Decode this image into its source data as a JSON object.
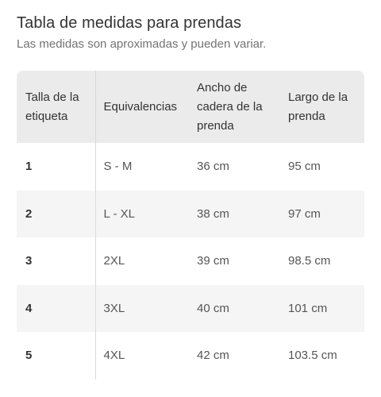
{
  "header": {
    "title": "Tabla de medidas para prendas",
    "subtitle": "Las medidas son aproximadas y pueden variar."
  },
  "table": {
    "columns": [
      "Talla de la etiqueta",
      "Equivalencias",
      "Ancho de cadera de la prenda",
      "Largo de la prenda"
    ],
    "rows": [
      {
        "size": "1",
        "equivalence": "S - M",
        "hip_width": "36 cm",
        "length": "95 cm"
      },
      {
        "size": "2",
        "equivalence": "L - XL",
        "hip_width": "38 cm",
        "length": "97 cm"
      },
      {
        "size": "3",
        "equivalence": "2XL",
        "hip_width": "39 cm",
        "length": "98.5 cm"
      },
      {
        "size": "4",
        "equivalence": "3XL",
        "hip_width": "40 cm",
        "length": "101 cm"
      },
      {
        "size": "5",
        "equivalence": "4XL",
        "hip_width": "42 cm",
        "length": "103.5 cm"
      }
    ]
  },
  "colors": {
    "header_bg": "#ebebeb",
    "row_alt_bg": "#f5f5f5",
    "text_primary": "#333333",
    "text_secondary": "#737373"
  }
}
